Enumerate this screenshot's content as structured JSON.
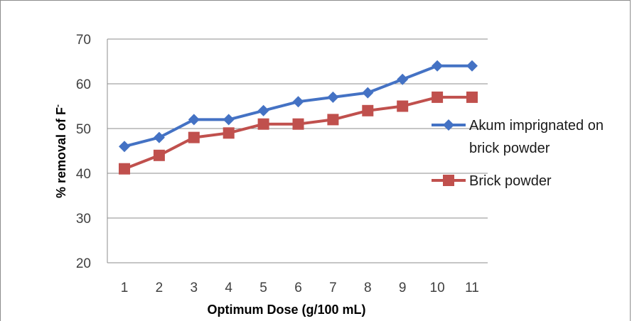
{
  "chart_data": {
    "type": "line",
    "categories": [
      "1",
      "2",
      "3",
      "4",
      "5",
      "6",
      "7",
      "8",
      "9",
      "10",
      "11"
    ],
    "series": [
      {
        "name": "Akum imprignated on brick powder",
        "name_lines": [
          "Akum imprignated on",
          "brick powder"
        ],
        "values": [
          46,
          48,
          52,
          52,
          54,
          56,
          57,
          58,
          61,
          64,
          64
        ],
        "color": "#4472c4",
        "marker": "diamond"
      },
      {
        "name": "Brick powder",
        "name_lines": [
          "Brick powder"
        ],
        "values": [
          41,
          44,
          48,
          49,
          51,
          51,
          52,
          54,
          55,
          57,
          57
        ],
        "color": "#c0504d",
        "marker": "square"
      }
    ],
    "xlabel": "Optimum Dose (g/100 mL)",
    "ylabel": "% removal of F",
    "ylabel_superscript": "-",
    "ylim": [
      20,
      70
    ],
    "yticks": [
      20,
      30,
      40,
      50,
      60,
      70
    ],
    "grid": "horizontal",
    "legend_position": "right"
  }
}
